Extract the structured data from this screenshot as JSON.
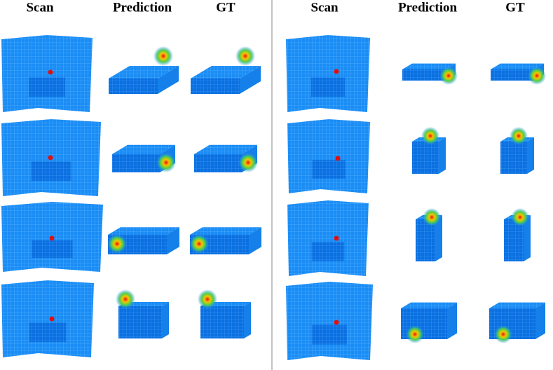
{
  "left": {
    "headers": [
      "Scan",
      "Prediction",
      "GT"
    ]
  },
  "right": {
    "headers": [
      "Scan",
      "Prediction",
      "GT"
    ]
  }
}
